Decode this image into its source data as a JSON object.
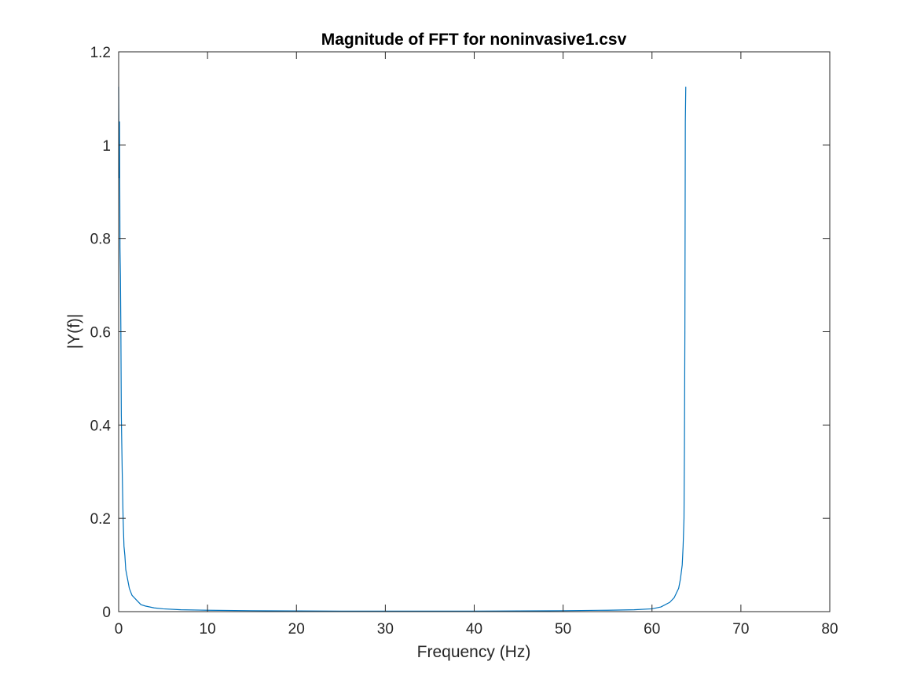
{
  "chart_data": {
    "type": "line",
    "title": "Magnitude of FFT for noninvasive1.csv",
    "xlabel": "Frequency (Hz)",
    "ylabel": "|Y(f)|",
    "xlim": [
      0,
      80
    ],
    "ylim": [
      0,
      1.2
    ],
    "xticks": [
      0,
      10,
      20,
      30,
      40,
      50,
      60,
      70,
      80
    ],
    "xtick_labels": [
      "0",
      "10",
      "20",
      "30",
      "40",
      "50",
      "60",
      "70",
      "80"
    ],
    "yticks": [
      0,
      0.2,
      0.4,
      0.6,
      0.8,
      1.0,
      1.2
    ],
    "ytick_labels": [
      "0",
      "0.2",
      "0.4",
      "0.6",
      "0.8",
      "1",
      "1.2"
    ],
    "grid": false,
    "line_color": "#0072BD",
    "series": [
      {
        "x": [
          0,
          0.05,
          0.1,
          0.15,
          0.2,
          0.25,
          0.3,
          0.4,
          0.5,
          0.6,
          0.7,
          0.8,
          1.0,
          1.2,
          1.5,
          2.0,
          2.5,
          3.0,
          4.0,
          5.0,
          7.0,
          10.0,
          15.0,
          20.0,
          25.0,
          30.0,
          35.0,
          40.0,
          45.0,
          50.0,
          55.0,
          58.0,
          60.0,
          61.0,
          62.0,
          62.5,
          63.0,
          63.2,
          63.4,
          63.5,
          63.6,
          63.65,
          63.7,
          63.75,
          63.8
        ],
        "y": [
          1.125,
          0.93,
          1.05,
          0.78,
          0.72,
          0.6,
          0.42,
          0.3,
          0.2,
          0.14,
          0.12,
          0.09,
          0.07,
          0.05,
          0.035,
          0.025,
          0.015,
          0.012,
          0.008,
          0.006,
          0.004,
          0.003,
          0.002,
          0.0015,
          0.0012,
          0.001,
          0.001,
          0.0012,
          0.0015,
          0.002,
          0.003,
          0.004,
          0.006,
          0.01,
          0.02,
          0.03,
          0.05,
          0.07,
          0.1,
          0.14,
          0.2,
          0.35,
          0.6,
          1.05,
          1.125
        ]
      }
    ]
  }
}
